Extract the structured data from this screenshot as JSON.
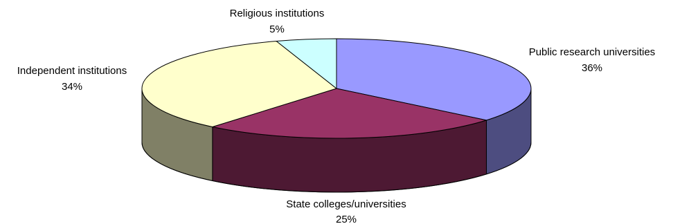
{
  "chart_data": {
    "type": "pie",
    "style": "3d",
    "slices": [
      {
        "name": "Public research universities",
        "value": 36,
        "label": "36%",
        "color": "#9999FF",
        "side_color": "#4D4D80"
      },
      {
        "name": "State colleges/universities",
        "value": 25,
        "label": "25%",
        "color": "#993366",
        "side_color": "#4D1933"
      },
      {
        "name": "Independent institutions",
        "value": 34,
        "label": "34%",
        "color": "#FFFFCC",
        "side_color": "#808066"
      },
      {
        "name": "Religious institutions",
        "value": 5,
        "label": "5%",
        "color": "#CCFFFF",
        "side_color": "#668080"
      }
    ]
  }
}
